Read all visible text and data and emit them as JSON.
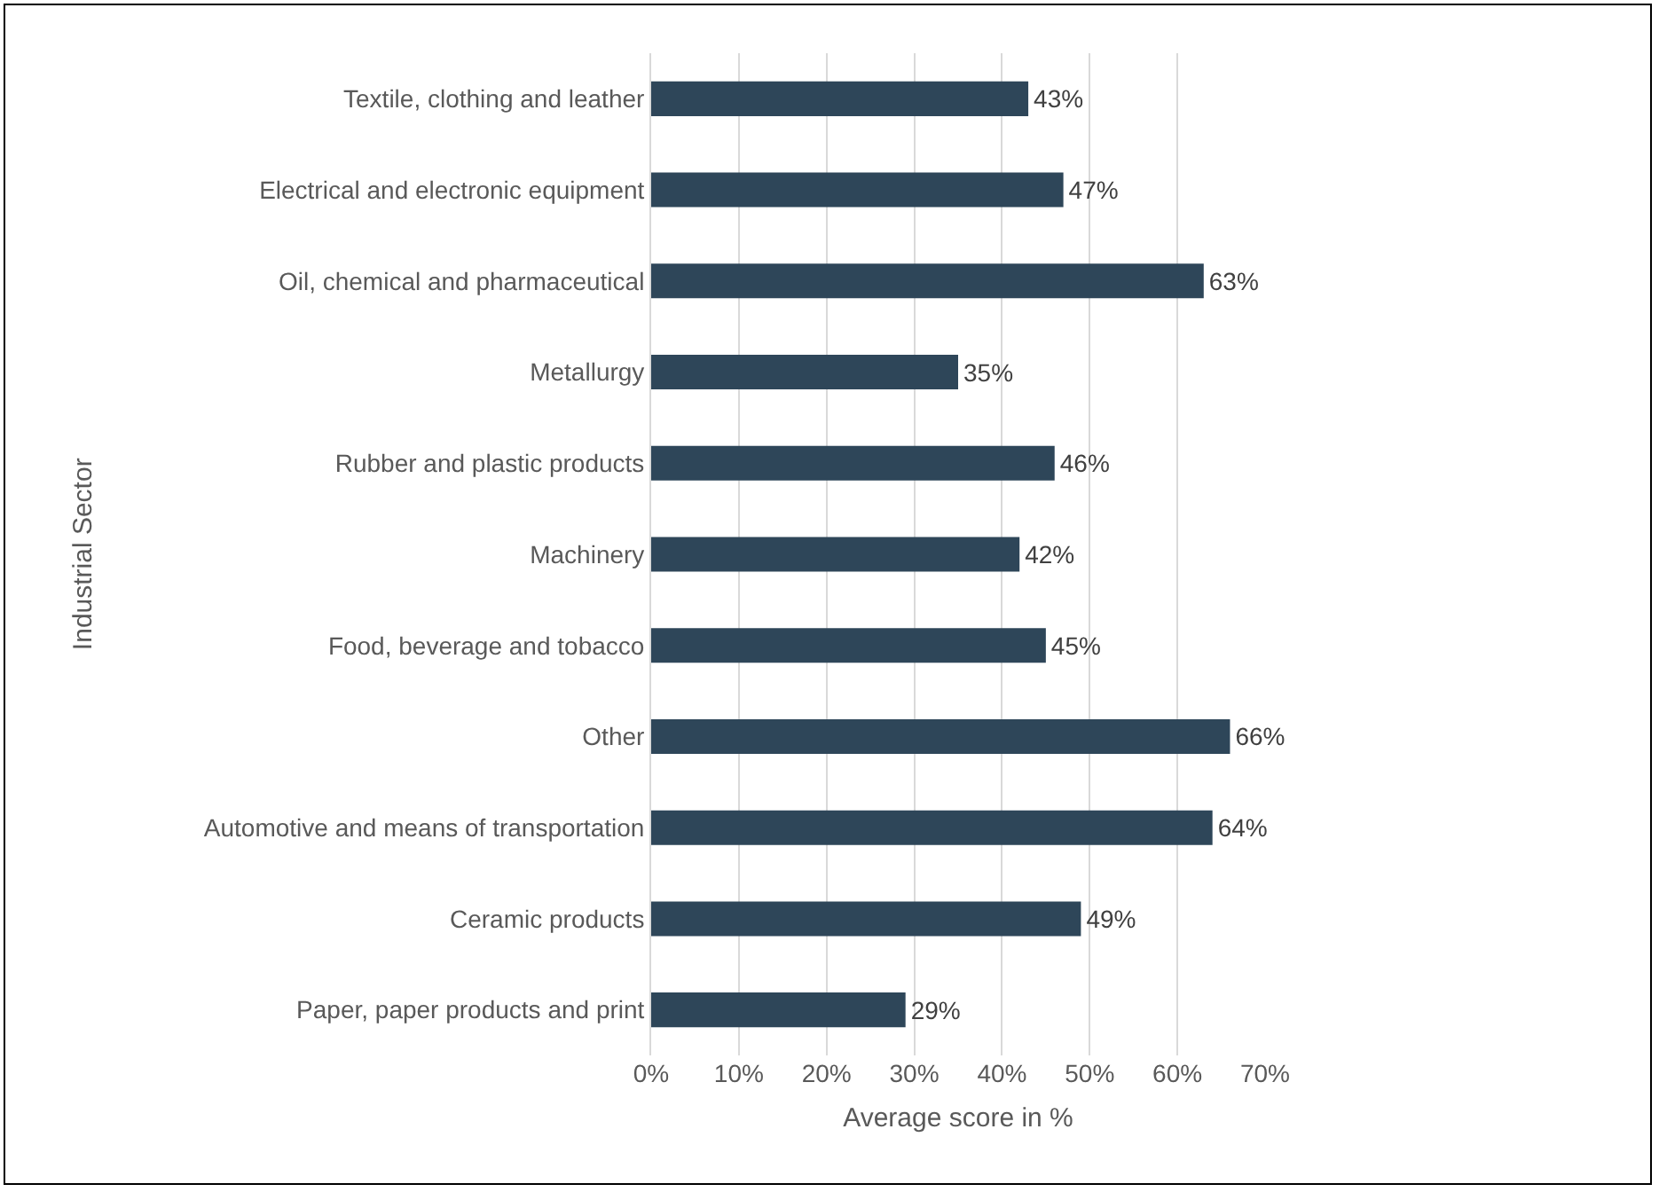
{
  "chart_data": {
    "type": "bar",
    "orientation": "horizontal",
    "categories": [
      "Textile, clothing and leather",
      "Electrical and electronic equipment",
      "Oil, chemical and pharmaceutical",
      "Metallurgy",
      "Rubber and plastic products",
      "Machinery",
      "Food, beverage and tobacco",
      "Other",
      "Automotive and means of transportation",
      "Ceramic products",
      "Paper, paper products and print"
    ],
    "values": [
      43,
      47,
      63,
      35,
      46,
      42,
      45,
      66,
      64,
      49,
      29
    ],
    "value_labels": [
      "43%",
      "47%",
      "63%",
      "35%",
      "46%",
      "42%",
      "45%",
      "66%",
      "64%",
      "49%",
      "29%"
    ],
    "color": "#2e4659",
    "xlabel": "Average score in %",
    "ylabel": "Industrial Sector",
    "xlim": [
      0,
      70
    ],
    "xticks": [
      {
        "value": 0,
        "label": "0%"
      },
      {
        "value": 10,
        "label": "10%"
      },
      {
        "value": 20,
        "label": "20%"
      },
      {
        "value": 30,
        "label": "30%"
      },
      {
        "value": 40,
        "label": "40%"
      },
      {
        "value": 50,
        "label": "50%"
      },
      {
        "value": 60,
        "label": "60%"
      },
      {
        "value": 70,
        "label": "70%"
      }
    ],
    "grid": "x"
  }
}
